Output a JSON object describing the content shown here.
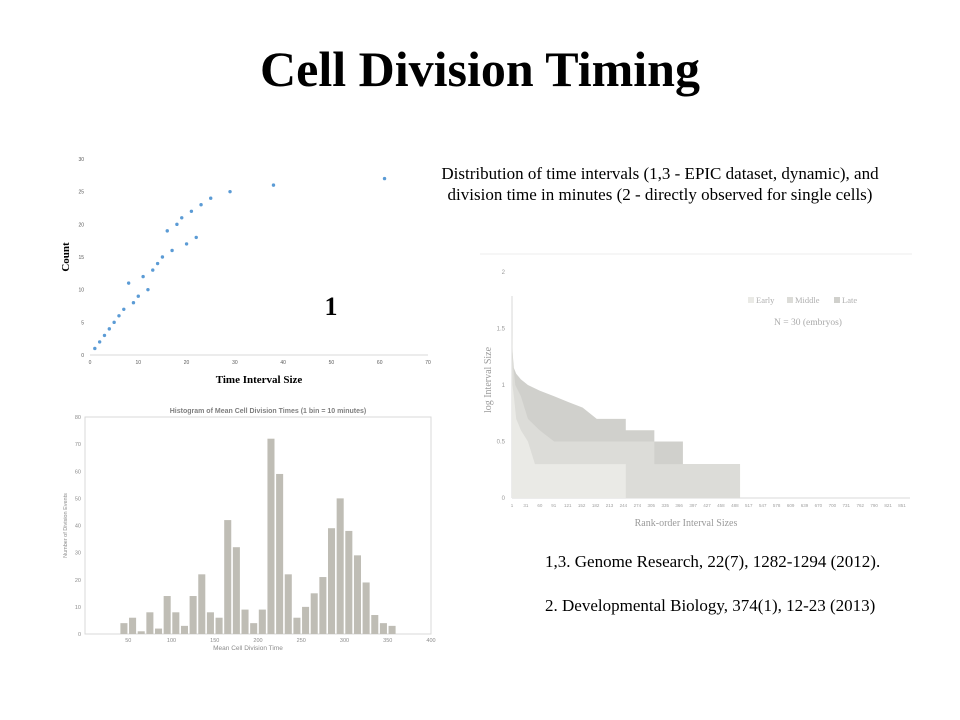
{
  "slide": {
    "title": "Cell Division Timing",
    "caption_line1": "Distribution of time intervals (1,3 - EPIC dataset, dynamic), and",
    "caption_line2": "division time in minutes (2 - directly observed for single cells)",
    "references": [
      "1,3. Genome Research, 22(7), 1282-1294 (2012).",
      "2. Developmental Biology, 374(1), 12-23 (2013)"
    ]
  },
  "chart_data": [
    {
      "type": "scatter",
      "panel_label": "1",
      "title": "",
      "xlabel": "Time Interval Size",
      "ylabel": "Count",
      "xlim": [
        0,
        70
      ],
      "ylim": [
        0,
        30
      ],
      "xticks": [
        0,
        10,
        20,
        30,
        40,
        50,
        60,
        70
      ],
      "yticks": [
        0,
        5,
        10,
        15,
        20,
        25,
        30
      ],
      "grid": false,
      "color": "#5b9bd5",
      "points": [
        [
          1,
          1
        ],
        [
          2,
          2
        ],
        [
          3,
          3
        ],
        [
          4,
          4
        ],
        [
          5,
          5
        ],
        [
          6,
          6
        ],
        [
          7,
          7
        ],
        [
          8,
          11
        ],
        [
          9,
          8
        ],
        [
          10,
          9
        ],
        [
          11,
          12
        ],
        [
          12,
          10
        ],
        [
          13,
          13
        ],
        [
          14,
          14
        ],
        [
          15,
          15
        ],
        [
          16,
          19
        ],
        [
          17,
          16
        ],
        [
          18,
          20
        ],
        [
          19,
          21
        ],
        [
          20,
          17
        ],
        [
          21,
          22
        ],
        [
          22,
          18
        ],
        [
          23,
          23
        ],
        [
          25,
          24
        ],
        [
          29,
          25
        ],
        [
          38,
          26
        ],
        [
          61,
          27
        ]
      ]
    },
    {
      "type": "bar",
      "title": "Histogram of Mean Cell Division Times (1 bin = 10 minutes)",
      "xlabel": "Mean Cell Division Time",
      "ylabel": "Number of Division Events",
      "xlim": [
        0,
        400
      ],
      "ylim": [
        0,
        80
      ],
      "xticks": [
        50,
        100,
        150,
        200,
        250,
        300,
        350,
        400
      ],
      "yticks": [
        0,
        10,
        20,
        30,
        40,
        50,
        60,
        70,
        80
      ],
      "bin_width": 10,
      "color": "#bfbdb5",
      "bins": [
        [
          45,
          4
        ],
        [
          55,
          6
        ],
        [
          65,
          1
        ],
        [
          75,
          8
        ],
        [
          85,
          2
        ],
        [
          95,
          14
        ],
        [
          105,
          8
        ],
        [
          115,
          3
        ],
        [
          125,
          14
        ],
        [
          135,
          22
        ],
        [
          145,
          8
        ],
        [
          155,
          6
        ],
        [
          165,
          42
        ],
        [
          175,
          32
        ],
        [
          185,
          9
        ],
        [
          195,
          4
        ],
        [
          205,
          9
        ],
        [
          215,
          72
        ],
        [
          225,
          59
        ],
        [
          235,
          22
        ],
        [
          245,
          6
        ],
        [
          255,
          10
        ],
        [
          265,
          15
        ],
        [
          275,
          21
        ],
        [
          285,
          39
        ],
        [
          295,
          50
        ],
        [
          305,
          38
        ],
        [
          315,
          29
        ],
        [
          325,
          19
        ],
        [
          335,
          7
        ],
        [
          345,
          4
        ],
        [
          355,
          3
        ]
      ]
    },
    {
      "type": "area",
      "title": "",
      "xlabel": "Rank-order Interval Sizes",
      "ylabel": "log Interval Size",
      "ylim": [
        0,
        2
      ],
      "yticks": [
        0,
        0.5,
        1,
        1.5,
        2
      ],
      "xtick_labels": [
        "1",
        "31",
        "60",
        "91",
        "121",
        "152",
        "182",
        "213",
        "244",
        "274",
        "305",
        "335",
        "366",
        "397",
        "427",
        "458",
        "488",
        "517",
        "547",
        "578",
        "609",
        "639",
        "670",
        "700",
        "731",
        "762",
        "790",
        "821",
        "851"
      ],
      "legend": [
        "Early",
        "Middle",
        "Late"
      ],
      "legend_position": "top-right",
      "annotation": "N = 30 (embryos)",
      "colors": {
        "early": "#eaeae6",
        "middle": "#dcdcd8",
        "late": "#d0d0cc"
      },
      "series": [
        {
          "name": "Early",
          "points": [
            [
              1,
              1.3
            ],
            [
              2,
              1.0
            ],
            [
              5,
              0.9
            ],
            [
              10,
              0.7
            ],
            [
              20,
              0.6
            ],
            [
              35,
              0.5
            ],
            [
              50,
              0.3
            ],
            [
              244,
              0.3
            ],
            [
              244,
              0
            ]
          ]
        },
        {
          "name": "Middle",
          "points": [
            [
              1,
              1.5
            ],
            [
              3,
              1.2
            ],
            [
              8,
              1.0
            ],
            [
              20,
              0.9
            ],
            [
              35,
              0.7
            ],
            [
              60,
              0.6
            ],
            [
              91,
              0.5
            ],
            [
              91,
              0.5
            ],
            [
              305,
              0.5
            ],
            [
              305,
              0.3
            ],
            [
              488,
              0.3
            ],
            [
              488,
              0
            ]
          ]
        },
        {
          "name": "Late",
          "points": [
            [
              1,
              1.78
            ],
            [
              2,
              1.3
            ],
            [
              5,
              1.15
            ],
            [
              10,
              1.1
            ],
            [
              20,
              1.05
            ],
            [
              35,
              1.0
            ],
            [
              60,
              0.95
            ],
            [
              91,
              0.9
            ],
            [
              121,
              0.85
            ],
            [
              152,
              0.8
            ],
            [
              182,
              0.7
            ],
            [
              244,
              0.7
            ],
            [
              244,
              0.6
            ],
            [
              305,
              0.6
            ],
            [
              305,
              0.5
            ],
            [
              366,
              0.5
            ],
            [
              366,
              0.3
            ],
            [
              488,
              0.3
            ],
            [
              488,
              0
            ]
          ]
        }
      ]
    }
  ]
}
